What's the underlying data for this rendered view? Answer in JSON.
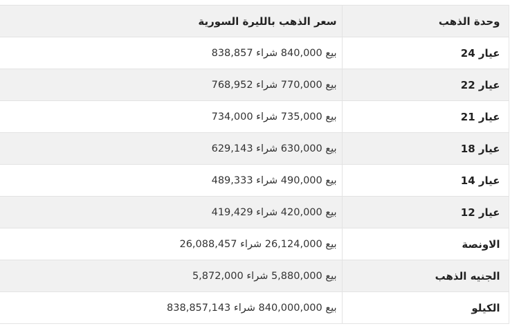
{
  "widget": {
    "header": {
      "unit_column": "وحدة الذهب",
      "price_column": "سعر الذهب بالليرة السورية"
    },
    "labels": {
      "sell": "بيع",
      "buy": "شراء"
    },
    "rows": [
      {
        "unit": "عيار 24",
        "sell": "840,000",
        "buy": "838,857"
      },
      {
        "unit": "عيار 22",
        "sell": "770,000",
        "buy": "768,952"
      },
      {
        "unit": "عيار 21",
        "sell": "735,000",
        "buy": "734,000"
      },
      {
        "unit": "عيار 18",
        "sell": "630,000",
        "buy": "629,143"
      },
      {
        "unit": "عيار 14",
        "sell": "490,000",
        "buy": "489,333"
      },
      {
        "unit": "عيار 12",
        "sell": "420,000",
        "buy": "419,429"
      },
      {
        "unit": "الاونصة",
        "sell": "26,124,000",
        "buy": "26,088,457"
      },
      {
        "unit": "الجنيه الذهب",
        "sell": "5,880,000",
        "buy": "5,872,000"
      },
      {
        "unit": "الكيلو",
        "sell": "840,000,000",
        "buy": "838,857,143"
      }
    ],
    "colors": {
      "stripe_background": "#f1f1f1",
      "border": "#e3e3e3",
      "unit_text": "#222222",
      "price_text": "#333333"
    }
  }
}
